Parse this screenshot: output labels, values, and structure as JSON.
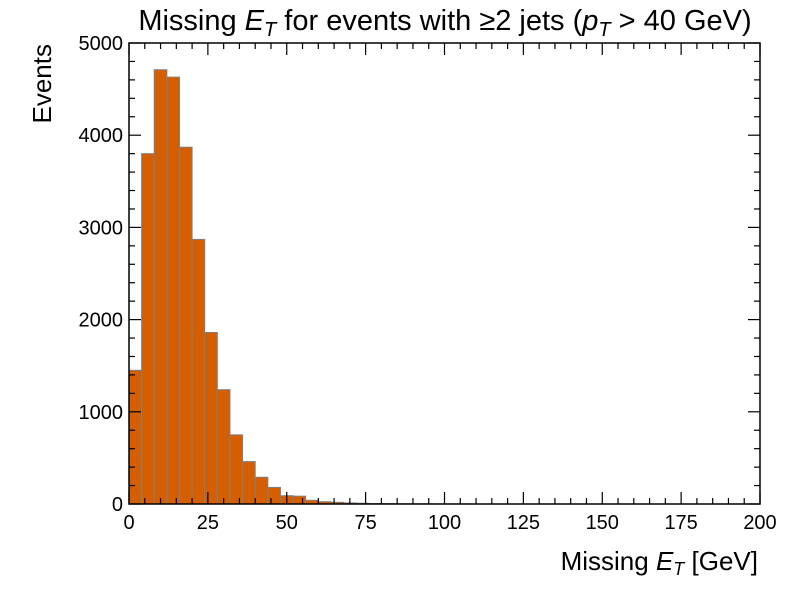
{
  "chart_data": {
    "type": "bar",
    "title_parts": {
      "t1": "Missing ",
      "t2": "E",
      "t3": "T",
      "t4": " for events with ≥2 jets (",
      "t5": "p",
      "t6": "T",
      "t7": " > 40 GeV)"
    },
    "xlabel_parts": {
      "a": "Missing ",
      "b": "E",
      "c": "T",
      "d": " [GeV]"
    },
    "ylabel": "Events",
    "xlim": [
      0,
      200
    ],
    "ylim": [
      0,
      5000
    ],
    "x_ticks": [
      "0",
      "25",
      "50",
      "75",
      "100",
      "125",
      "150",
      "175",
      "200"
    ],
    "y_ticks": [
      "0",
      "1000",
      "2000",
      "3000",
      "4000",
      "5000"
    ],
    "bin_width": 4,
    "bin_edges_start": 0,
    "values": [
      1450,
      3800,
      4710,
      4630,
      3870,
      2870,
      1860,
      1240,
      750,
      460,
      290,
      180,
      90,
      85,
      40,
      25,
      18,
      12,
      8,
      5,
      4,
      3,
      2,
      2,
      1,
      1,
      1,
      0,
      0,
      0,
      0,
      0,
      0,
      0,
      0,
      0,
      0,
      0,
      0,
      0,
      0,
      0,
      0,
      0,
      0,
      0,
      0,
      0,
      0,
      0
    ],
    "bar_color": "#d55e00",
    "edge_color": "#808080",
    "grid": false,
    "legend": "none"
  }
}
